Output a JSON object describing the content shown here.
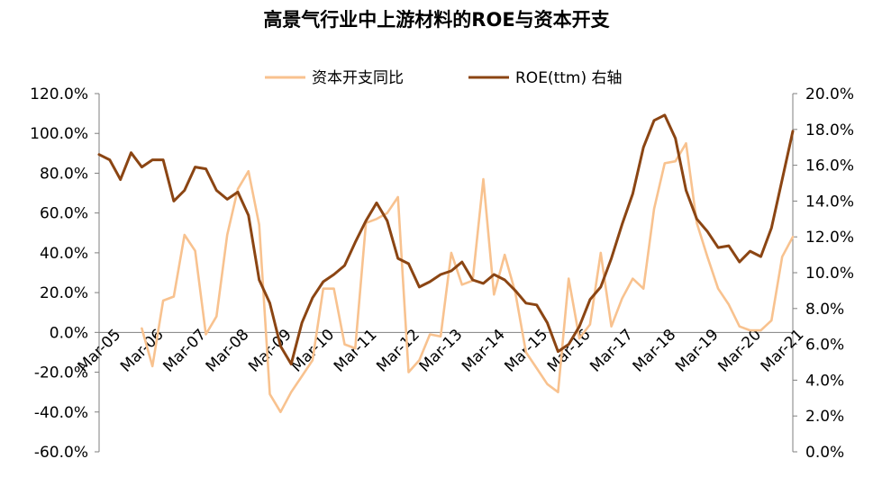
{
  "chart_data": {
    "type": "line",
    "title": "高景气行业中上游材料的ROE与资本开支",
    "x_labels": [
      "Mar-05",
      "Mar-06",
      "Mar-07",
      "Mar-08",
      "Mar-09",
      "Mar-10",
      "Mar-11",
      "Mar-12",
      "Mar-13",
      "Mar-14",
      "Mar-15",
      "Mar-16",
      "Mar-17",
      "Mar-18",
      "Mar-19",
      "Mar-20",
      "Mar-21"
    ],
    "x_range": [
      0,
      65
    ],
    "left_axis": {
      "ticks": [
        "120.0%",
        "100.0%",
        "80.0%",
        "60.0%",
        "40.0%",
        "20.0%",
        "0.0%",
        "-20.0%",
        "-40.0%",
        "-60.0%"
      ],
      "ylim": [
        -60,
        120
      ]
    },
    "right_axis": {
      "ticks": [
        "20.0%",
        "18.0%",
        "16.0%",
        "14.0%",
        "12.0%",
        "10.0%",
        "8.0%",
        "6.0%",
        "4.0%",
        "2.0%",
        "0.0%"
      ],
      "ylim": [
        0,
        20
      ]
    },
    "legend_position": "top-center",
    "series": [
      {
        "name": "资本开支同比",
        "axis": "left",
        "color": "#F8C28F",
        "points": [
          [
            4,
            2
          ],
          [
            5,
            -17
          ],
          [
            6,
            16
          ],
          [
            7,
            18
          ],
          [
            8,
            49
          ],
          [
            9,
            41
          ],
          [
            10,
            -1
          ],
          [
            11,
            8
          ],
          [
            12,
            49
          ],
          [
            13,
            72
          ],
          [
            14,
            81
          ],
          [
            15,
            54
          ],
          [
            16,
            -31
          ],
          [
            17,
            -40
          ],
          [
            18,
            -30
          ],
          [
            19,
            -22
          ],
          [
            20,
            -14
          ],
          [
            21,
            22
          ],
          [
            22,
            22
          ],
          [
            23,
            -6
          ],
          [
            24,
            -8
          ],
          [
            25,
            55
          ],
          [
            26,
            57
          ],
          [
            27,
            60
          ],
          [
            28,
            68
          ],
          [
            29,
            -20
          ],
          [
            30,
            -14
          ],
          [
            31,
            -1
          ],
          [
            32,
            -2
          ],
          [
            33,
            40
          ],
          [
            34,
            24
          ],
          [
            35,
            26
          ],
          [
            36,
            77
          ],
          [
            37,
            19
          ],
          [
            38,
            39
          ],
          [
            39,
            20
          ],
          [
            40,
            -10
          ],
          [
            41,
            -18
          ],
          [
            42,
            -26
          ],
          [
            43,
            -30
          ],
          [
            44,
            27
          ],
          [
            45,
            -3
          ],
          [
            46,
            4
          ],
          [
            47,
            40
          ],
          [
            48,
            3
          ],
          [
            49,
            17
          ],
          [
            50,
            27
          ],
          [
            51,
            22
          ],
          [
            52,
            62
          ],
          [
            53,
            85
          ],
          [
            54,
            86
          ],
          [
            55,
            95
          ],
          [
            56,
            55
          ],
          [
            57,
            38
          ],
          [
            58,
            22
          ],
          [
            59,
            14
          ],
          [
            60,
            3
          ],
          [
            61,
            1
          ],
          [
            62,
            1
          ],
          [
            63,
            6
          ],
          [
            64,
            38
          ],
          [
            65,
            48
          ]
        ]
      },
      {
        "name": "ROE(ttm) 右轴",
        "axis": "right",
        "color": "#8B4513",
        "points": [
          [
            0,
            16.6
          ],
          [
            1,
            16.3
          ],
          [
            2,
            15.2
          ],
          [
            3,
            16.7
          ],
          [
            4,
            15.9
          ],
          [
            5,
            16.3
          ],
          [
            6,
            16.3
          ],
          [
            7,
            14
          ],
          [
            8,
            14.6
          ],
          [
            9,
            15.9
          ],
          [
            10,
            15.8
          ],
          [
            11,
            14.6
          ],
          [
            12,
            14.1
          ],
          [
            13,
            14.5
          ],
          [
            14,
            13.2
          ],
          [
            15,
            9.6
          ],
          [
            16,
            8.3
          ],
          [
            17,
            5.9
          ],
          [
            18,
            4.9
          ],
          [
            19,
            7.2
          ],
          [
            20,
            8.6
          ],
          [
            21,
            9.5
          ],
          [
            22,
            9.9
          ],
          [
            23,
            10.4
          ],
          [
            24,
            11.7
          ],
          [
            25,
            12.9
          ],
          [
            26,
            13.9
          ],
          [
            27,
            12.9
          ],
          [
            28,
            10.8
          ],
          [
            29,
            10.5
          ],
          [
            30,
            9.2
          ],
          [
            31,
            9.5
          ],
          [
            32,
            9.9
          ],
          [
            33,
            10.1
          ],
          [
            34,
            10.6
          ],
          [
            35,
            9.6
          ],
          [
            36,
            9.4
          ],
          [
            37,
            9.9
          ],
          [
            38,
            9.6
          ],
          [
            39,
            9
          ],
          [
            40,
            8.3
          ],
          [
            41,
            8.2
          ],
          [
            42,
            7.2
          ],
          [
            43,
            5.6
          ],
          [
            44,
            6
          ],
          [
            45,
            7
          ],
          [
            46,
            8.5
          ],
          [
            47,
            9.2
          ],
          [
            48,
            10.8
          ],
          [
            49,
            12.7
          ],
          [
            50,
            14.4
          ],
          [
            51,
            17
          ],
          [
            52,
            18.5
          ],
          [
            53,
            18.8
          ],
          [
            54,
            17.5
          ],
          [
            55,
            14.6
          ],
          [
            56,
            13
          ],
          [
            57,
            12.3
          ],
          [
            58,
            11.4
          ],
          [
            59,
            11.5
          ],
          [
            60,
            10.6
          ],
          [
            61,
            11.2
          ],
          [
            62,
            10.9
          ],
          [
            63,
            12.5
          ],
          [
            64,
            15.2
          ],
          [
            65,
            17.9
          ]
        ]
      }
    ]
  }
}
